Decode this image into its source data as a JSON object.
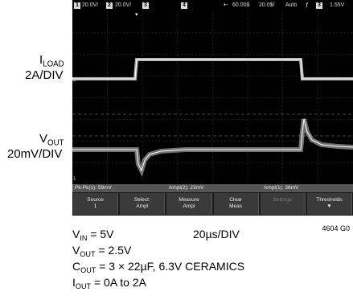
{
  "scope": {
    "top": {
      "ch1_num": "1",
      "ch1_scale": "20.0V/",
      "ch2_num": "2",
      "ch2_scale": "20.0V/",
      "ch3_num": "3",
      "ch4_num": "4",
      "time_pos": "60.00$",
      "time_scale": "20.0$/",
      "trigger_mode": "Auto",
      "trig_ch": "3",
      "trig_level": "1.55V"
    },
    "measurements": [
      "Pk-Pk(1): 59mV",
      "Ampl(2): 23mV",
      "Ampl(1): 36mV"
    ],
    "softkeys": [
      {
        "label": "Source",
        "value": "1"
      },
      {
        "label": "Select:",
        "value": "Ampl"
      },
      {
        "label": "Measure",
        "value": "Ampl"
      },
      {
        "label": "Clear",
        "value": "Meas"
      },
      {
        "label": "Settings",
        "value": ""
      },
      {
        "label": "Thresholds",
        "value": ""
      }
    ],
    "marker_2": "2",
    "marker_1": "1"
  },
  "labels": {
    "iload_main": "I",
    "iload_sub": "LOAD",
    "iload_scale": "2A/DIV",
    "vout_main": "V",
    "vout_sub": "OUT",
    "vout_scale": "20mV/DIV"
  },
  "conditions": {
    "vin_main": "V",
    "vin_sub": "IN",
    "vin_val": " = 5V",
    "timebase": "20µs/DIV",
    "vout_main": "V",
    "vout_sub": "OUT",
    "vout_val": " = 2.5V",
    "cout_main": "C",
    "cout_sub": "OUT",
    "cout_val": " = 3 × 22µF, 6.3V CERAMICS",
    "iout_main": "I",
    "iout_sub": "OUT",
    "iout_val": " = 0A to 2A"
  },
  "figure_id": "4604 G0",
  "colors": {
    "screen_bg": "#000000",
    "trace": "#d8d8d8",
    "grid": "#666666"
  }
}
